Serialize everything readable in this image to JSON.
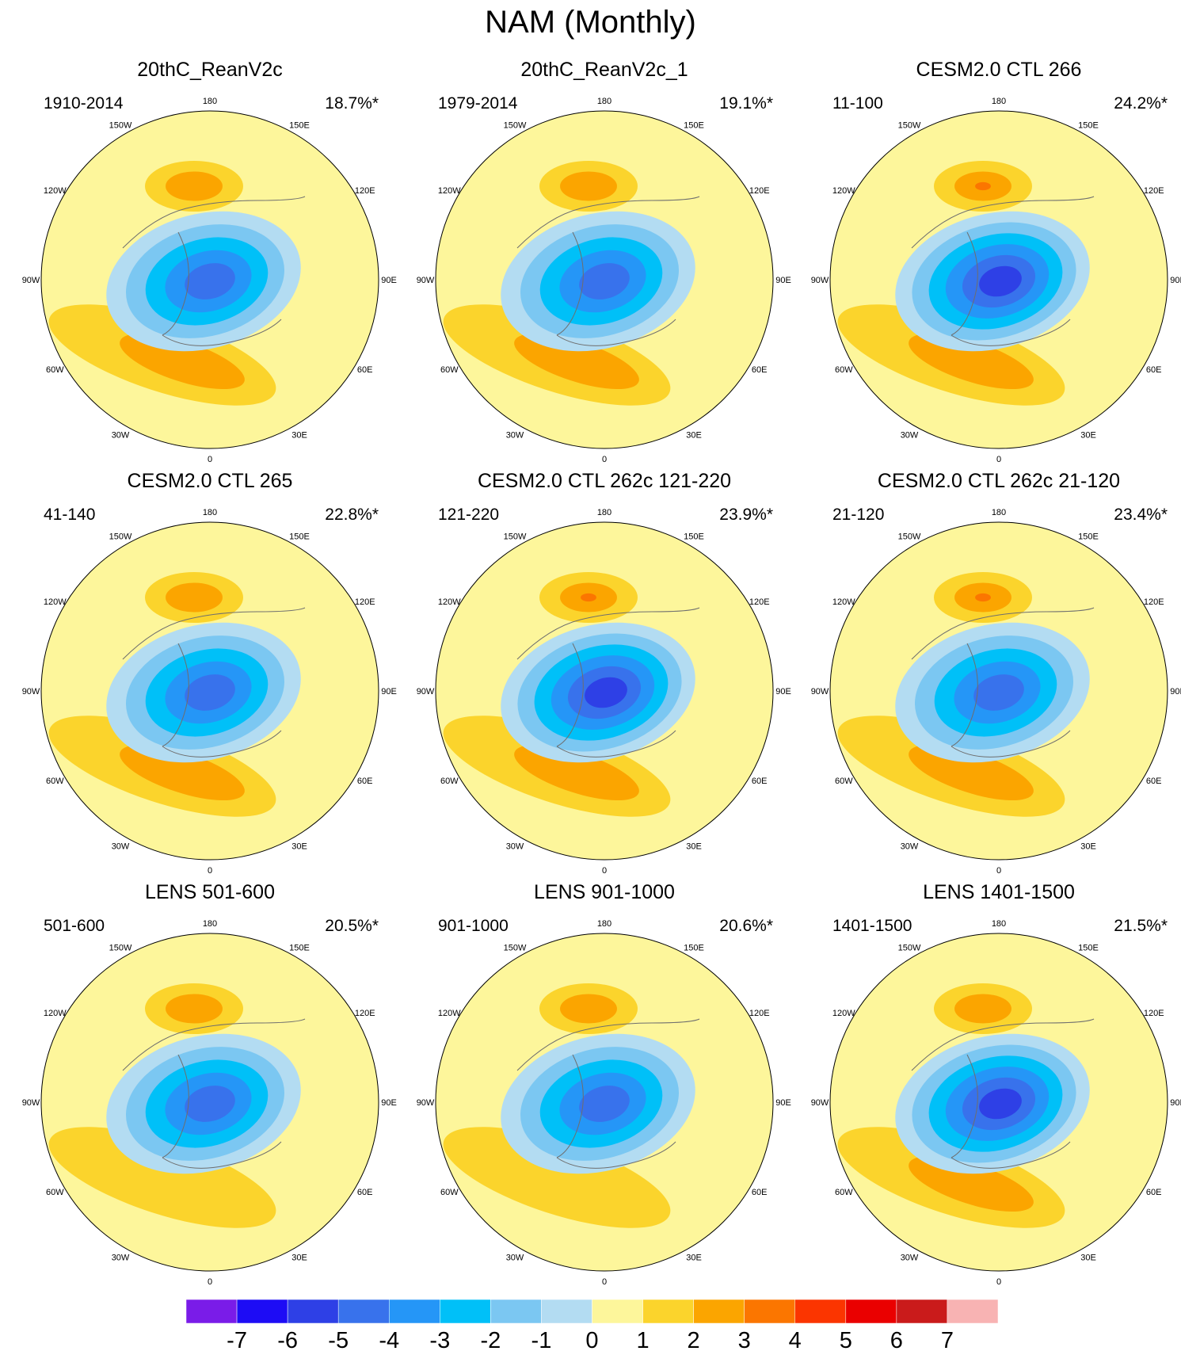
{
  "title": "NAM (Monthly)",
  "chart_data": {
    "type": "heatmap",
    "title": "NAM (Monthly)",
    "projection": "north-polar-stereographic",
    "longitude_labels": [
      "180",
      "150E",
      "120E",
      "90E",
      "60E",
      "30E",
      "0",
      "30W",
      "60W",
      "90W",
      "120W",
      "150W"
    ],
    "colorbar": {
      "labels": [
        "-7",
        "-6",
        "-5",
        "-4",
        "-3",
        "-2",
        "-1",
        "0",
        "1",
        "2",
        "3",
        "4",
        "5",
        "6",
        "7"
      ],
      "colors": [
        "#7a1ce8",
        "#1d0cf5",
        "#2e40e6",
        "#3872ec",
        "#2596f7",
        "#00c0f8",
        "#7bc7f2",
        "#b3dcf2",
        "#fdf69b",
        "#fbd42c",
        "#fba500",
        "#fb7600",
        "#fb3500",
        "#ea0000",
        "#ca1b1b",
        "#f8b3b3"
      ]
    },
    "panels": [
      {
        "title": "20thC_ReanV2c",
        "period": "1910-2014",
        "variance": "18.7%*",
        "ho_max": 2,
        "ha_max": 2,
        "lo_min": -5
      },
      {
        "title": "20thC_ReanV2c_1",
        "period": "1979-2014",
        "variance": "19.1%*",
        "ho_max": 2,
        "ha_max": 2,
        "lo_min": -5
      },
      {
        "title": "CESM2.0 CTL 266",
        "period": "11-100",
        "variance": "24.2%*",
        "ho_max": 3,
        "ha_max": 2,
        "lo_min": -6
      },
      {
        "title": "CESM2.0 CTL 265",
        "period": "41-140",
        "variance": "22.8%*",
        "ho_max": 2,
        "ha_max": 2,
        "lo_min": -5
      },
      {
        "title": "CESM2.0 CTL 262c 121-220",
        "period": "121-220",
        "variance": "23.9%*",
        "ho_max": 3,
        "ha_max": 2,
        "lo_min": -6
      },
      {
        "title": "CESM2.0 CTL 262c 21-120",
        "period": "21-120",
        "variance": "23.4%*",
        "ho_max": 3,
        "ha_max": 2,
        "lo_min": -5
      },
      {
        "title": "LENS 501-600",
        "period": "501-600",
        "variance": "20.5%*",
        "ho_max": 2,
        "ha_max": 1,
        "lo_min": -5
      },
      {
        "title": "LENS 901-1000",
        "period": "901-1000",
        "variance": "20.6%*",
        "ho_max": 2,
        "ha_max": 1,
        "lo_min": -5
      },
      {
        "title": "LENS 1401-1500",
        "period": "1401-1500",
        "variance": "21.5%*",
        "ho_max": 2,
        "ha_max": 2,
        "lo_min": -6
      }
    ]
  }
}
